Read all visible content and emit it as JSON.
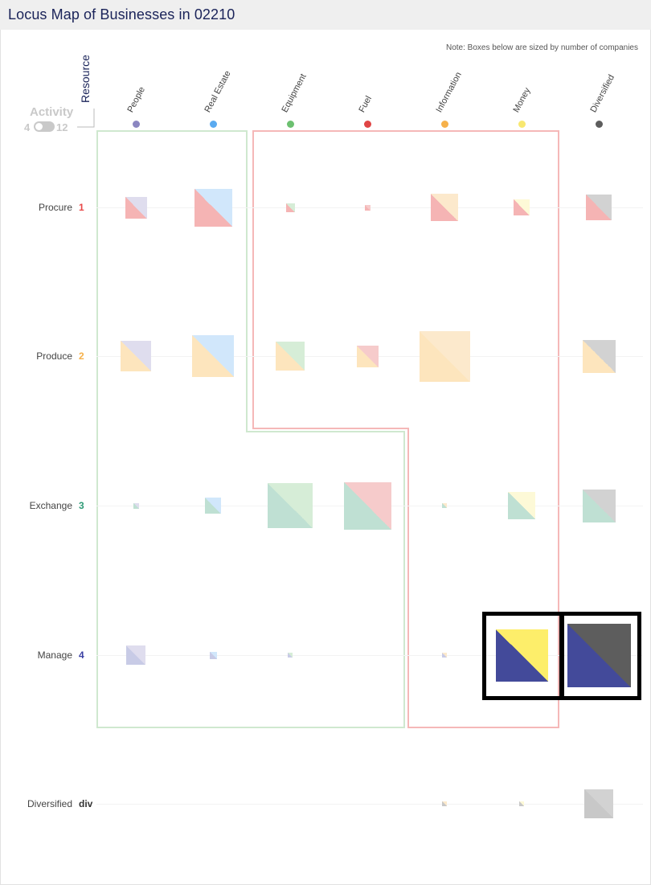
{
  "page": {
    "title": "Locus Map of Businesses in 02210",
    "note": "Note: Boxes below are sized by number of companies"
  },
  "axes": {
    "resource_label": "Resource",
    "activity_label": "Activity",
    "toggle_min": "4",
    "toggle_max": "12"
  },
  "columns": [
    {
      "key": "people",
      "label": "People",
      "color": "#8b86c1"
    },
    {
      "key": "real-estate",
      "label": "Real Estate",
      "color": "#5aaaf0"
    },
    {
      "key": "equipment",
      "label": "Equipment",
      "color": "#6cc070"
    },
    {
      "key": "fuel",
      "label": "Fuel",
      "color": "#e04545"
    },
    {
      "key": "information",
      "label": "Information",
      "color": "#f6b14a"
    },
    {
      "key": "money",
      "label": "Money",
      "color": "#f8e870"
    },
    {
      "key": "diversified",
      "label": "Diversified",
      "color": "#5d5d5d"
    }
  ],
  "rows": [
    {
      "key": "procure",
      "label": "Procure",
      "num": "1",
      "color": "#e84848",
      "fill": "#f5b4b4"
    },
    {
      "key": "produce",
      "label": "Produce",
      "num": "2",
      "color": "#f6b14a",
      "fill": "#fde5bd"
    },
    {
      "key": "exchange",
      "label": "Exchange",
      "num": "3",
      "color": "#2e9a76",
      "fill": "#bfe0d3"
    },
    {
      "key": "manage",
      "label": "Manage",
      "num": "4",
      "color": "#3a3fa3",
      "fill": "#c8cbe6"
    },
    {
      "key": "diversified",
      "label": "Diversified",
      "num": "div",
      "color": "#333333",
      "fill": "#c8c8c8"
    }
  ],
  "cells": [
    [
      0.3,
      0.52,
      0.12,
      0.08,
      0.38,
      0.22,
      0.36
    ],
    [
      0.42,
      0.58,
      0.4,
      0.3,
      0.7,
      0.0,
      0.45
    ],
    [
      0.08,
      0.22,
      0.62,
      0.65,
      0.06,
      0.38,
      0.46
    ],
    [
      0.27,
      0.1,
      0.07,
      0.0,
      0.06,
      0.72,
      0.88
    ],
    [
      0.0,
      0.0,
      0.0,
      0.0,
      0.06,
      0.05,
      0.4
    ]
  ],
  "highlighted": [
    [
      3,
      5
    ],
    [
      3,
      6
    ]
  ],
  "highlight_colors": {
    "dark_fill": "#434a9a",
    "yellow_fill": "#fdee6a",
    "gray_fill": "#5d5d5d"
  }
}
